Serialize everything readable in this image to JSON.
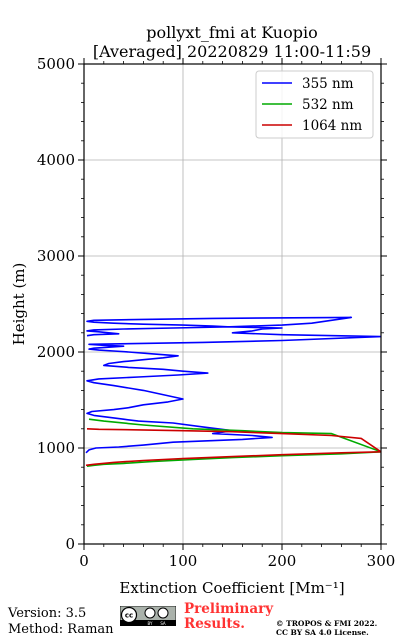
{
  "chart_data": {
    "type": "line",
    "title": "pollyxt_fmi at Kuopio",
    "subtitle": "[Averaged] 20220829 11:00-11:59",
    "xlabel": "Extinction Coefficient [Mm⁻¹]",
    "ylabel": "Height (m)",
    "xlim": [
      0,
      300
    ],
    "ylim": [
      0,
      5000
    ],
    "x_ticks": [
      "0",
      "100",
      "200",
      "300"
    ],
    "y_ticks": [
      "0",
      "1000",
      "2000",
      "3000",
      "4000",
      "5000"
    ],
    "grid": true,
    "legend_position": "top-right",
    "series": [
      {
        "name": "355 nm",
        "color": "#0000ff",
        "x": [
          2,
          5,
          12,
          35,
          60,
          90,
          160,
          190,
          170,
          130,
          150,
          120,
          90,
          55,
          40,
          25,
          10,
          3,
          8,
          30,
          45,
          60,
          85,
          100,
          60,
          30,
          10,
          3,
          15,
          55,
          95,
          125,
          100,
          80,
          45,
          20,
          25,
          40,
          60,
          80,
          95,
          70,
          45,
          30,
          15,
          5,
          10,
          25,
          40,
          20,
          5,
          120,
          200,
          300,
          200,
          150,
          170,
          180,
          200,
          150,
          130,
          100,
          60,
          30,
          10,
          3,
          10,
          60,
          130,
          270,
          230,
          200,
          140,
          90,
          40,
          10,
          3,
          15,
          25,
          35,
          10,
          3
        ],
        "y": [
          950,
          980,
          1000,
          1010,
          1030,
          1060,
          1090,
          1110,
          1130,
          1150,
          1180,
          1220,
          1260,
          1280,
          1300,
          1320,
          1340,
          1360,
          1380,
          1400,
          1420,
          1450,
          1480,
          1510,
          1600,
          1650,
          1680,
          1700,
          1720,
          1740,
          1760,
          1780,
          1800,
          1820,
          1840,
          1860,
          1880,
          1900,
          1920,
          1940,
          1960,
          1980,
          2000,
          2010,
          2020,
          2030,
          2040,
          2050,
          2060,
          2070,
          2080,
          2100,
          2120,
          2160,
          2180,
          2200,
          2220,
          2240,
          2250,
          2260,
          2270,
          2280,
          2290,
          2300,
          2310,
          2320,
          2330,
          2340,
          2350,
          2360,
          2300,
          2280,
          2260,
          2250,
          2240,
          2230,
          2220,
          2210,
          2200,
          2190,
          2180,
          2170
        ]
      },
      {
        "name": "532 nm",
        "color": "#00aa00",
        "x": [
          3,
          10,
          20,
          40,
          70,
          110,
          150,
          200,
          260,
          300,
          250,
          200,
          160,
          110,
          60,
          20,
          5
        ],
        "y": [
          810,
          820,
          830,
          840,
          860,
          880,
          900,
          920,
          940,
          960,
          1150,
          1160,
          1180,
          1200,
          1240,
          1280,
          1300
        ]
      },
      {
        "name": "1064 nm",
        "color": "#cc0000",
        "x": [
          2,
          10,
          30,
          60,
          100,
          150,
          200,
          260,
          300,
          280,
          250,
          200,
          150,
          100,
          50,
          15,
          3
        ],
        "y": [
          820,
          830,
          850,
          870,
          890,
          910,
          930,
          950,
          960,
          1100,
          1130,
          1150,
          1170,
          1180,
          1190,
          1195,
          1200
        ]
      }
    ]
  },
  "footer": {
    "version": "Version: 3.5",
    "method": "Method: Raman",
    "preliminary_1": "Preliminary",
    "preliminary_2": "Results.",
    "copyright_1": "© TROPOS & FMI 2022.",
    "copyright_2": "CC BY SA 4.0 License.",
    "license_logo": "CC BY SA",
    "preliminary_color": "#ff3333"
  }
}
